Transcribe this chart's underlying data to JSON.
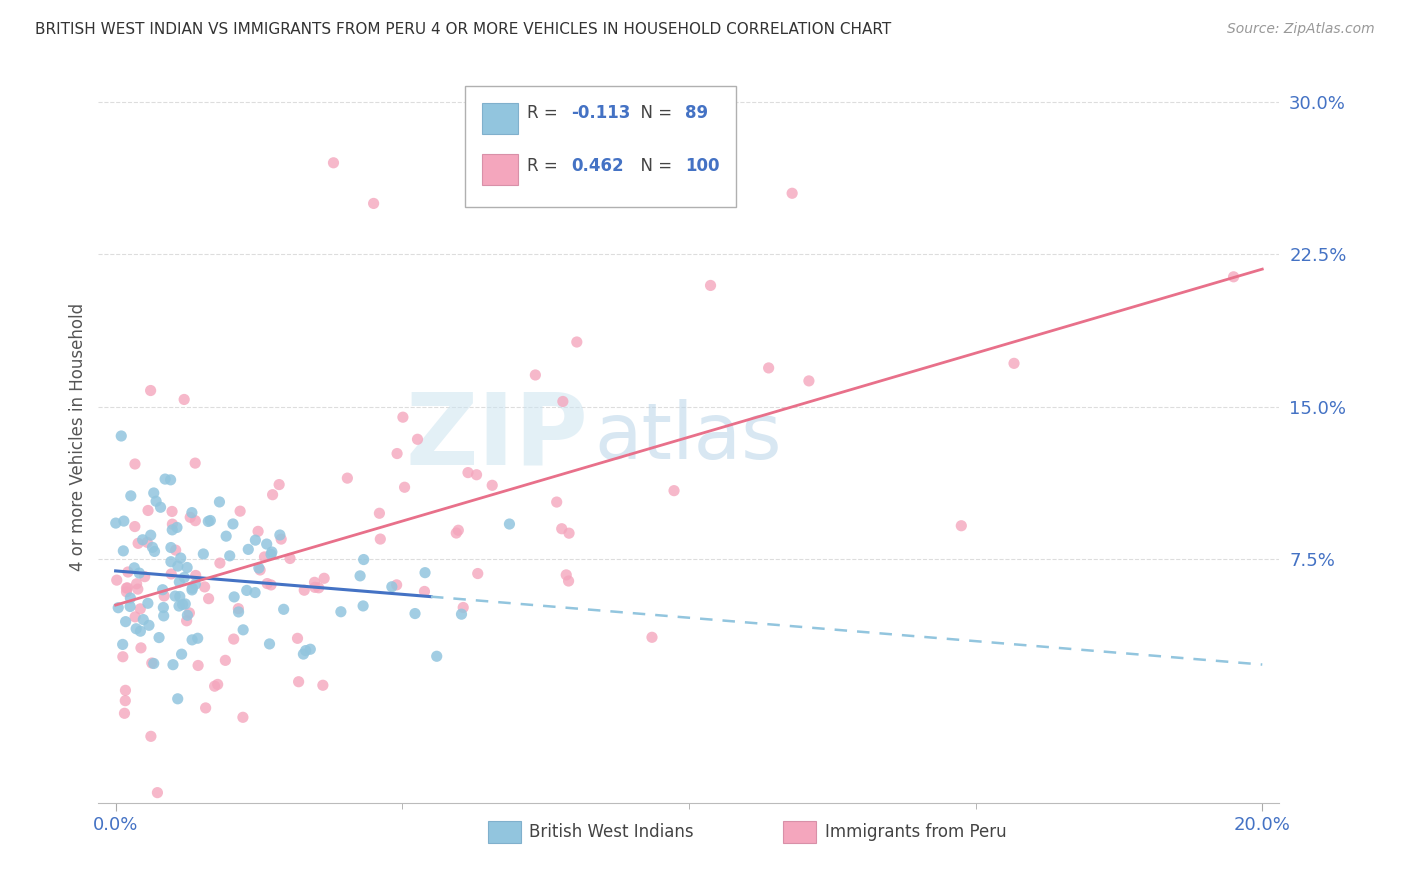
{
  "title": "BRITISH WEST INDIAN VS IMMIGRANTS FROM PERU 4 OR MORE VEHICLES IN HOUSEHOLD CORRELATION CHART",
  "source": "Source: ZipAtlas.com",
  "ylabel": "4 or more Vehicles in Household",
  "color_blue": "#92c5de",
  "color_pink": "#f4a6bd",
  "trend_blue_solid": "#4472c4",
  "trend_blue_dashed": "#92c5de",
  "trend_pink": "#e8708a",
  "watermark_zip": "#c8dff0",
  "watermark_atlas": "#b0cce0",
  "legend_label1": "British West Indians",
  "legend_label2": "Immigrants from Peru",
  "legend_r1": "-0.113",
  "legend_n1": "89",
  "legend_r2": "0.462",
  "legend_n2": "100",
  "xlim": [
    -0.003,
    0.203
  ],
  "ylim": [
    -0.045,
    0.315
  ],
  "xticks": [
    0.0,
    0.2
  ],
  "yticks": [
    0.075,
    0.15,
    0.225,
    0.3
  ],
  "grid_color": "#dddddd",
  "tick_color": "#4472c4",
  "title_color": "#333333",
  "source_color": "#999999",
  "ylabel_color": "#555555"
}
